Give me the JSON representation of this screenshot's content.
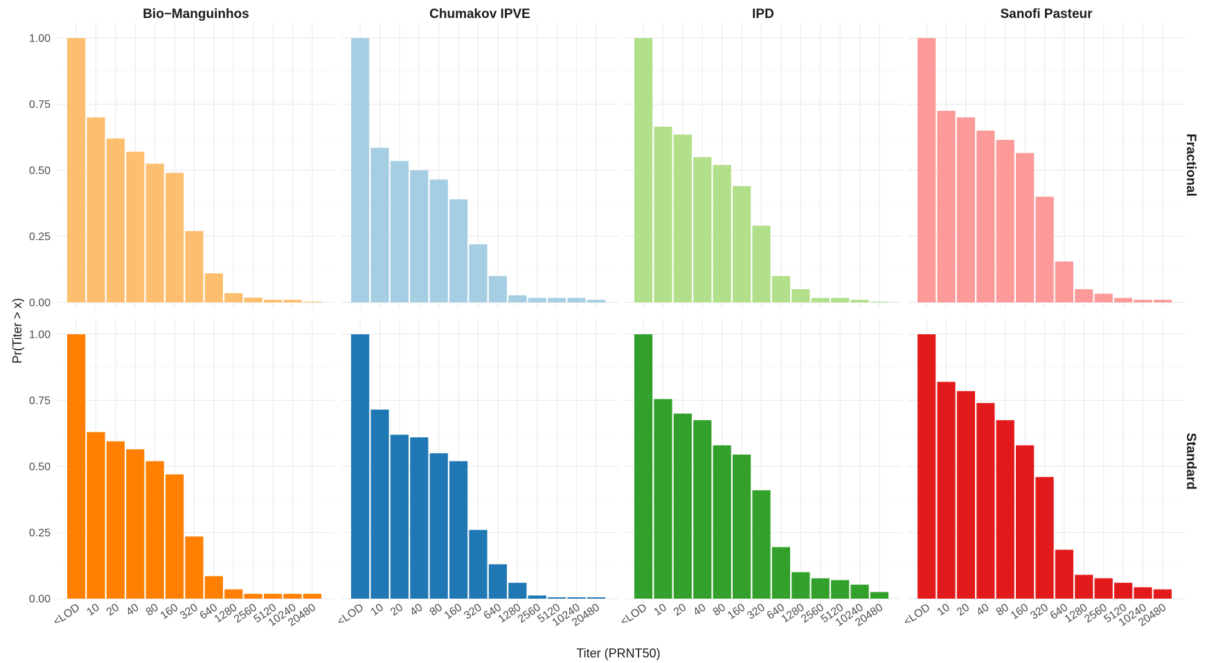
{
  "chart_data": {
    "type": "bar",
    "xlabel": "Titer (PRNT50)",
    "ylabel": "Pr(Titer > x)",
    "ylim": [
      0,
      1
    ],
    "yticks": [
      "0.00",
      "0.25",
      "0.50",
      "0.75",
      "1.00"
    ],
    "grid": true,
    "facet_columns": [
      "Bio−Manguinhos",
      "Chumakov IPVE",
      "IPD",
      "Sanofi Pasteur"
    ],
    "facet_rows": [
      "Fractional",
      "Standard"
    ],
    "categories": [
      "<LOD",
      "10",
      "20",
      "40",
      "80",
      "160",
      "320",
      "640",
      "1280",
      "2560",
      "5120",
      "10240",
      "20480"
    ],
    "colors": {
      "Fractional": [
        "#fdbf6f",
        "#a6cee3",
        "#b2df8a",
        "#fb9a99"
      ],
      "Standard": [
        "#ff7f00",
        "#1f78b4",
        "#33a02c",
        "#e31a1c"
      ]
    },
    "panels": [
      {
        "facet_column": "Bio−Manguinhos",
        "facet_row": "Fractional",
        "values": [
          1.0,
          0.7,
          0.62,
          0.57,
          0.525,
          0.49,
          0.27,
          0.11,
          0.035,
          0.018,
          0.01,
          0.01,
          0.003
        ]
      },
      {
        "facet_column": "Chumakov IPVE",
        "facet_row": "Fractional",
        "values": [
          1.0,
          0.585,
          0.535,
          0.5,
          0.465,
          0.39,
          0.22,
          0.1,
          0.027,
          0.017,
          0.017,
          0.017,
          0.01
        ]
      },
      {
        "facet_column": "IPD",
        "facet_row": "Fractional",
        "values": [
          1.0,
          0.665,
          0.635,
          0.55,
          0.52,
          0.44,
          0.29,
          0.1,
          0.05,
          0.017,
          0.017,
          0.01,
          0.003
        ]
      },
      {
        "facet_column": "Sanofi Pasteur",
        "facet_row": "Fractional",
        "values": [
          1.0,
          0.725,
          0.7,
          0.65,
          0.615,
          0.565,
          0.4,
          0.155,
          0.05,
          0.033,
          0.017,
          0.01,
          0.01
        ]
      },
      {
        "facet_column": "Bio−Manguinhos",
        "facet_row": "Standard",
        "values": [
          1.0,
          0.63,
          0.595,
          0.565,
          0.52,
          0.47,
          0.235,
          0.085,
          0.035,
          0.018,
          0.018,
          0.018,
          0.018
        ]
      },
      {
        "facet_column": "Chumakov IPVE",
        "facet_row": "Standard",
        "values": [
          1.0,
          0.715,
          0.62,
          0.61,
          0.55,
          0.52,
          0.26,
          0.13,
          0.06,
          0.012,
          0.005,
          0.005,
          0.005
        ]
      },
      {
        "facet_column": "IPD",
        "facet_row": "Standard",
        "values": [
          1.0,
          0.755,
          0.7,
          0.675,
          0.58,
          0.545,
          0.41,
          0.195,
          0.1,
          0.077,
          0.07,
          0.053,
          0.025
        ]
      },
      {
        "facet_column": "Sanofi Pasteur",
        "facet_row": "Standard",
        "values": [
          1.0,
          0.82,
          0.785,
          0.74,
          0.675,
          0.58,
          0.46,
          0.185,
          0.09,
          0.077,
          0.06,
          0.043,
          0.035
        ]
      }
    ]
  }
}
